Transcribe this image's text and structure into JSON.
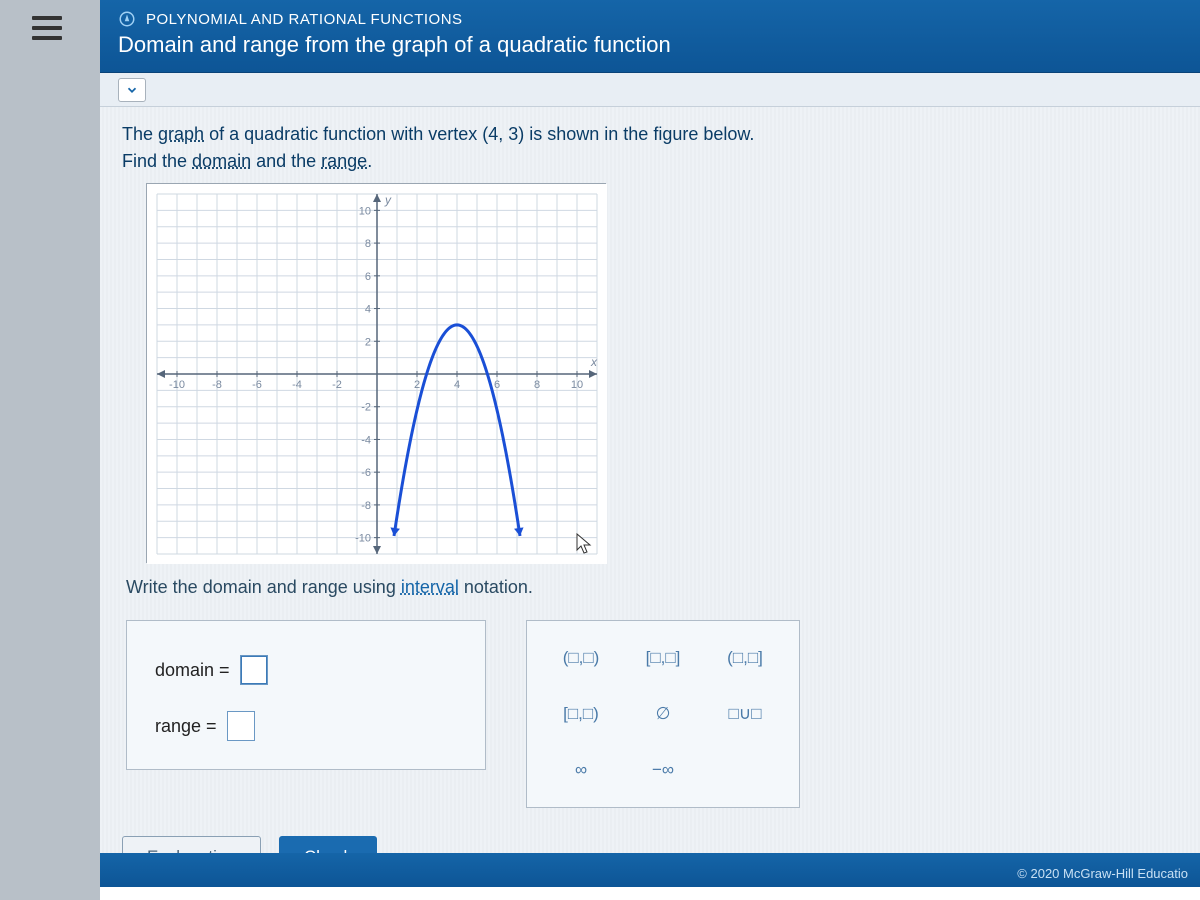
{
  "header": {
    "category": "POLYNOMIAL AND RATIONAL FUNCTIONS",
    "topic": "Domain and range from the graph of a quadratic function"
  },
  "prompt": {
    "line1_a": "The ",
    "term_graph": "graph",
    "line1_b": " of a quadratic function with vertex ",
    "vertex": "(4, 3)",
    "line1_c": " is shown in the figure below.",
    "line2_a": "Find the ",
    "term_domain": "domain",
    "line2_b": " and the ",
    "term_range": "range",
    "line2_c": "."
  },
  "chart": {
    "type": "line",
    "xlim": [
      -11,
      11
    ],
    "ylim": [
      -11,
      11
    ],
    "tick_step": 2,
    "x_ticks": [
      -10,
      -8,
      -6,
      -4,
      -2,
      2,
      4,
      6,
      8,
      10
    ],
    "y_ticks": [
      -10,
      -8,
      -6,
      -4,
      -2,
      2,
      4,
      6,
      8,
      10
    ],
    "x_label": "x",
    "y_label": "y",
    "grid_color": "#cfd8e2",
    "axis_color": "#56667a",
    "tick_label_color": "#7a8aa0",
    "tick_fontsize": 11,
    "background_color": "#ffffff",
    "curve": {
      "color": "#1a4fd6",
      "width": 3,
      "a": -1.3,
      "vertex": [
        4,
        3
      ],
      "x_start": 0.85,
      "x_end": 7.15,
      "arrow_size": 8
    }
  },
  "instruction_a": "Write the domain and range using ",
  "instruction_term": "interval",
  "instruction_b": " notation.",
  "answers": {
    "domain_label": "domain =",
    "domain_value": "",
    "range_label": "range =",
    "range_value": ""
  },
  "palette": {
    "open_open": "(□,□)",
    "closed_closed": "[□,□]",
    "open_closed": "(□,□]",
    "closed_open": "[□,□)",
    "empty_set": "∅",
    "union": "□∪□",
    "infinity": "∞",
    "neg_infinity": "−∞"
  },
  "buttons": {
    "explanation": "Explanation",
    "check": "Check"
  },
  "footer": "© 2020 McGraw-Hill Educatio",
  "colors": {
    "header_bg": "#1565a8",
    "link": "#1565a8"
  }
}
